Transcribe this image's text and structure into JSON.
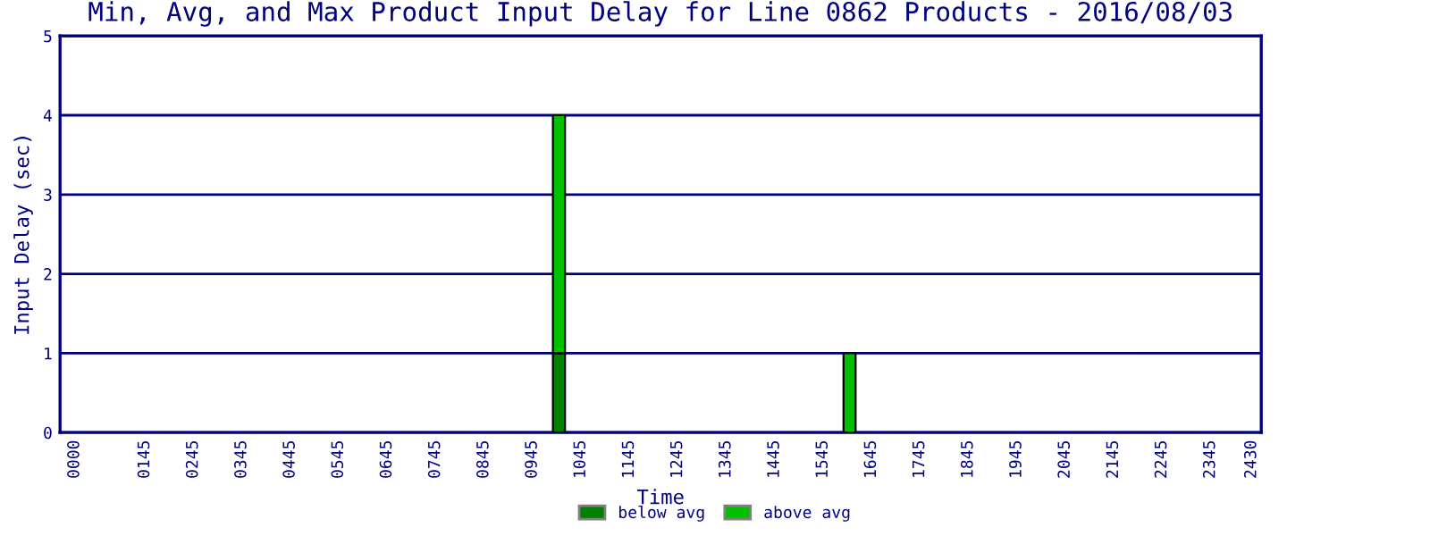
{
  "chart_data": {
    "type": "bar",
    "title": "Min, Avg, and Max Product Input Delay for Line 0862 Products - 2016/08/03",
    "xlabel": "Time",
    "ylabel": "Input Delay (sec)",
    "x": [
      1000,
      1600
    ],
    "series": [
      {
        "name": "below avg",
        "color": "#008000",
        "values": [
          1,
          0
        ]
      },
      {
        "name": "above avg",
        "color": "#00c000",
        "values": [
          3,
          1
        ]
      }
    ],
    "stacked": true,
    "xlim": [
      -30,
      2450
    ],
    "xticks": [
      {
        "value": 0,
        "label": "0000"
      },
      {
        "value": 145,
        "label": "0145"
      },
      {
        "value": 245,
        "label": "0245"
      },
      {
        "value": 345,
        "label": "0345"
      },
      {
        "value": 445,
        "label": "0445"
      },
      {
        "value": 545,
        "label": "0545"
      },
      {
        "value": 645,
        "label": "0645"
      },
      {
        "value": 745,
        "label": "0745"
      },
      {
        "value": 845,
        "label": "0845"
      },
      {
        "value": 945,
        "label": "0945"
      },
      1045,
      1145,
      1245,
      1345,
      1445,
      1545,
      1645,
      1745,
      1845,
      1945,
      2045,
      2145,
      2245,
      2345,
      2430
    ],
    "ylim": [
      0,
      5
    ],
    "yticks": [
      0,
      1,
      2,
      3,
      4,
      5
    ],
    "grid": "y",
    "legend": "bottom"
  }
}
